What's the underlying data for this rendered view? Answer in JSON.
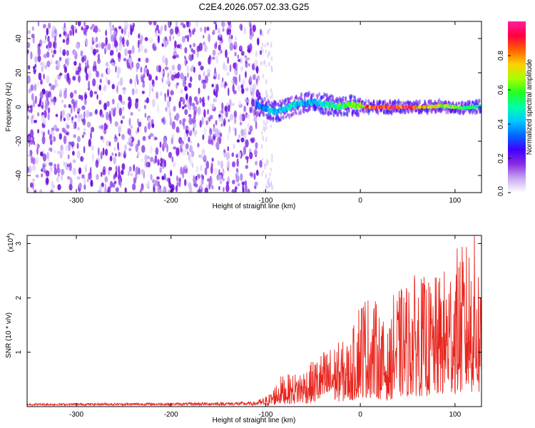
{
  "title": "C2E4.2026.057.02.33.G25",
  "chart_data": [
    {
      "type": "heatmap",
      "panel": "top",
      "xlabel": "Height of straight line (km)",
      "ylabel": "Frequency (Hz)",
      "xlim": [
        -352,
        128
      ],
      "ylim": [
        -50,
        50
      ],
      "x_ticks": [
        -300,
        -200,
        -100,
        0,
        100
      ],
      "x_tick_labels": [
        "-300",
        "-200",
        "-100",
        "0",
        "100"
      ],
      "y_ticks": [
        -40,
        -20,
        0,
        20,
        40
      ],
      "y_tick_labels": [
        "-40",
        "-20",
        "0",
        "20",
        "40"
      ],
      "noise_region_x": [
        -352,
        -105
      ],
      "signal_track": [
        {
          "x": -110,
          "f": 2,
          "amp": 0.35
        },
        {
          "x": -100,
          "f": -1,
          "amp": 0.4
        },
        {
          "x": -90,
          "f": -3,
          "amp": 0.45
        },
        {
          "x": -80,
          "f": -1,
          "amp": 0.45
        },
        {
          "x": -70,
          "f": 1,
          "amp": 0.5
        },
        {
          "x": -60,
          "f": 2,
          "amp": 0.45
        },
        {
          "x": -50,
          "f": 3,
          "amp": 0.45
        },
        {
          "x": -40,
          "f": 2,
          "amp": 0.5
        },
        {
          "x": -30,
          "f": 1,
          "amp": 0.55
        },
        {
          "x": -20,
          "f": 0.5,
          "amp": 0.6
        },
        {
          "x": -10,
          "f": 1,
          "amp": 0.65
        },
        {
          "x": 0,
          "f": 0.5,
          "amp": 0.75
        },
        {
          "x": 10,
          "f": 0,
          "amp": 0.9
        },
        {
          "x": 20,
          "f": 0,
          "amp": 0.95
        },
        {
          "x": 30,
          "f": 0,
          "amp": 0.97
        },
        {
          "x": 40,
          "f": 0,
          "amp": 0.97
        },
        {
          "x": 50,
          "f": 0,
          "amp": 0.95
        },
        {
          "x": 60,
          "f": 0,
          "amp": 0.85
        },
        {
          "x": 70,
          "f": 0,
          "amp": 0.8
        },
        {
          "x": 80,
          "f": 0.5,
          "amp": 0.75
        },
        {
          "x": 90,
          "f": 0.5,
          "amp": 0.7
        },
        {
          "x": 100,
          "f": 0,
          "amp": 0.65
        },
        {
          "x": 110,
          "f": -0.5,
          "amp": 0.6
        },
        {
          "x": 120,
          "f": 0,
          "amp": 0.55
        },
        {
          "x": 128,
          "f": 0.5,
          "amp": 0.5
        }
      ],
      "colorbar": {
        "label": "Normalized spectral amplitude",
        "range": [
          0,
          1
        ],
        "ticks": [
          0.0,
          0.2,
          0.4,
          0.6,
          0.8
        ],
        "tick_labels": [
          "0.0",
          "0.2",
          "0.4",
          "0.6",
          "0.8"
        ],
        "colors": [
          "#ffffff",
          "#c8a8f0",
          "#8a2be2",
          "#4000ff",
          "#0066ff",
          "#00c8ff",
          "#00ffaa",
          "#22ff22",
          "#aaff00",
          "#ffd000",
          "#ff6000",
          "#ff0040",
          "#ff1f9f"
        ]
      }
    },
    {
      "type": "line",
      "panel": "bottom",
      "xlabel": "Height of straight line (km)",
      "ylabel": "SNR (10 * v/v)",
      "y_scale_label": "(x10",
      "y_scale_exponent": "4",
      "y_scale_suffix": ")",
      "xlim": [
        -352,
        128
      ],
      "ylim": [
        0,
        3.15
      ],
      "x_ticks": [
        -300,
        -200,
        -100,
        0,
        100
      ],
      "x_tick_labels": [
        "-300",
        "-200",
        "-100",
        "0",
        "100"
      ],
      "y_ticks": [
        1,
        2,
        3
      ],
      "y_tick_labels": [
        "1",
        "2",
        "3"
      ],
      "line_color": "#e8261e",
      "envelope": [
        {
          "x": -352,
          "y": 0.04
        },
        {
          "x": -200,
          "y": 0.05
        },
        {
          "x": -110,
          "y": 0.07
        },
        {
          "x": -95,
          "y": 0.25
        },
        {
          "x": -85,
          "y": 0.55
        },
        {
          "x": -70,
          "y": 0.6
        },
        {
          "x": -55,
          "y": 0.75
        },
        {
          "x": -40,
          "y": 1.0
        },
        {
          "x": -25,
          "y": 1.15
        },
        {
          "x": -10,
          "y": 1.2
        },
        {
          "x": 0,
          "y": 2.1
        },
        {
          "x": 15,
          "y": 1.95
        },
        {
          "x": 30,
          "y": 1.3
        },
        {
          "x": 35,
          "y": 2.0
        },
        {
          "x": 50,
          "y": 2.25
        },
        {
          "x": 60,
          "y": 2.4
        },
        {
          "x": 75,
          "y": 2.25
        },
        {
          "x": 90,
          "y": 2.5
        },
        {
          "x": 100,
          "y": 2.85
        },
        {
          "x": 110,
          "y": 2.9
        },
        {
          "x": 120,
          "y": 3.15
        },
        {
          "x": 128,
          "y": 2.4
        }
      ]
    }
  ]
}
